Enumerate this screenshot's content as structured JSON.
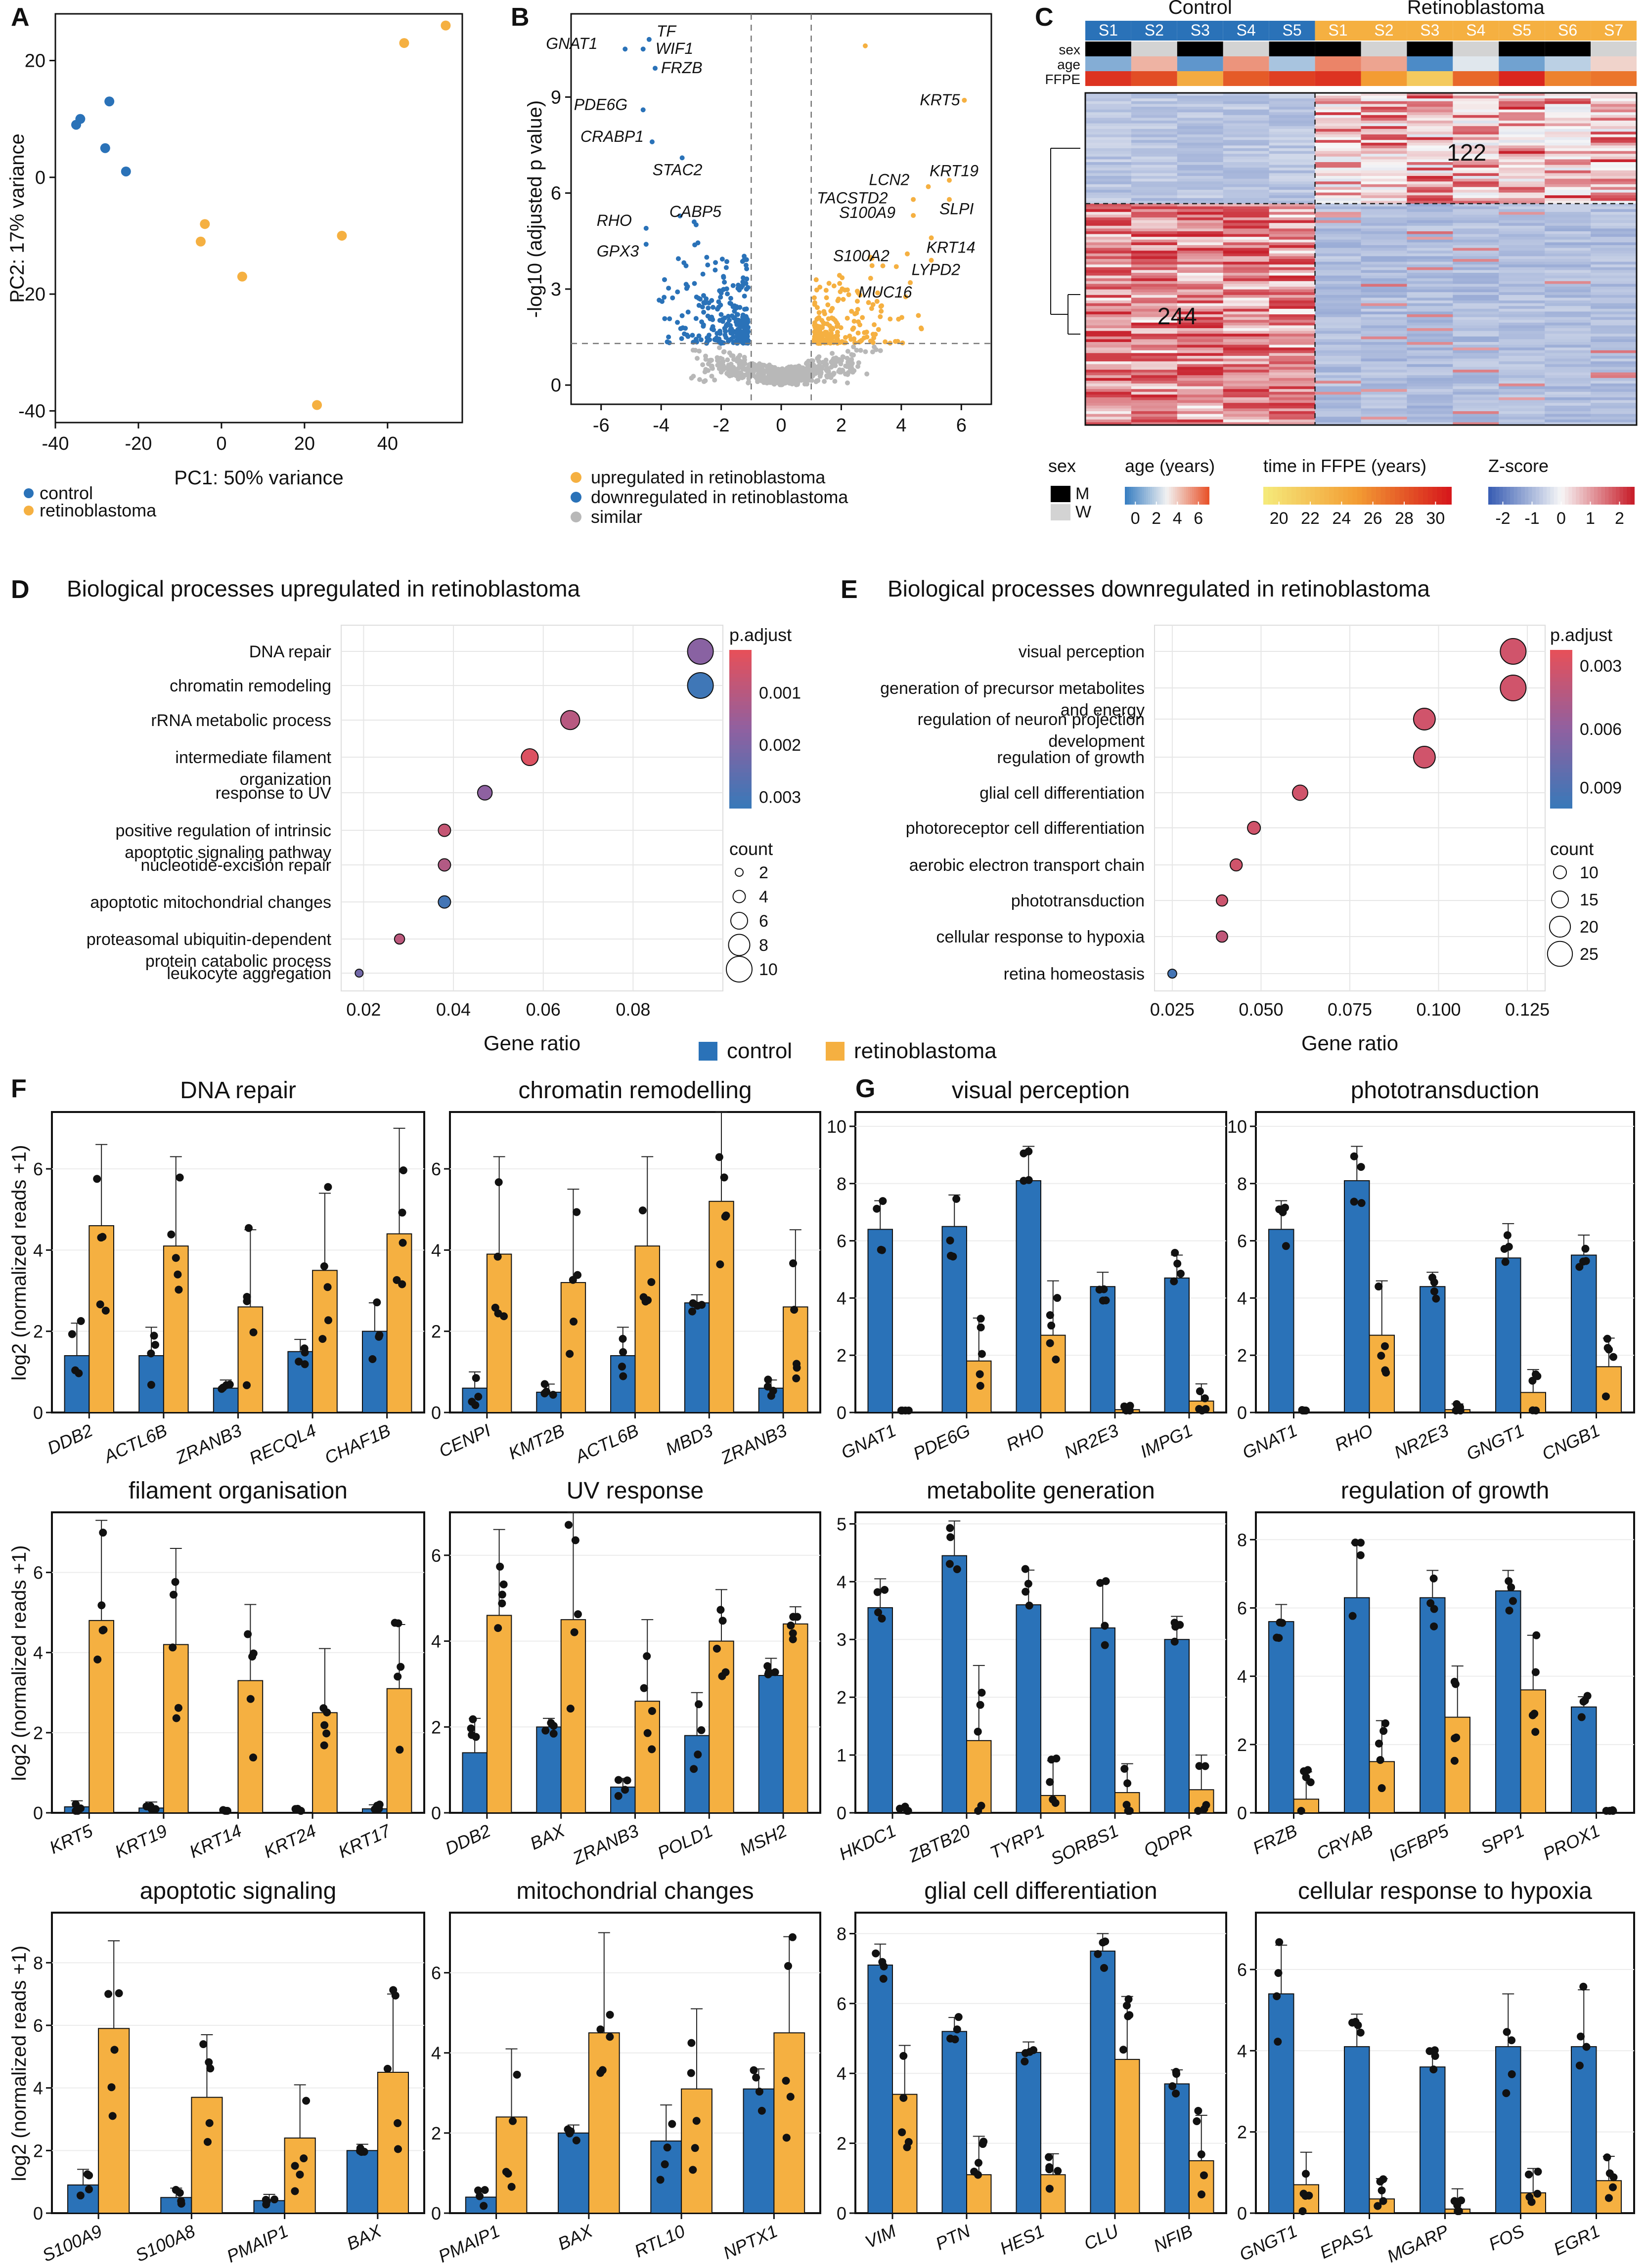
{
  "figure": {
    "panel_letters": [
      "A",
      "B",
      "C",
      "D",
      "E",
      "F",
      "G"
    ]
  },
  "colors": {
    "control": "#2a72b8",
    "retinoblastoma": "#f5b041",
    "similar": "#b8b8b8",
    "male": "#000000",
    "female": "#d3d3d3"
  },
  "chart_data": [
    {
      "id": "A",
      "type": "scatter",
      "xlabel": "PC1: 50% variance",
      "ylabel": "PC2: 17% variance",
      "xlim": [
        -40,
        58
      ],
      "ylim": [
        -42,
        28
      ],
      "xticks": [
        "-40",
        "-20",
        "0",
        "20",
        "40"
      ],
      "yticks": [
        "20",
        "0",
        "-20",
        "-40"
      ],
      "legend": [
        "control",
        "retinoblastoma"
      ],
      "series": [
        {
          "name": "control",
          "points": [
            [
              -35,
              9
            ],
            [
              -34,
              10
            ],
            [
              -27,
              13
            ],
            [
              -28,
              5
            ],
            [
              -23,
              1
            ]
          ]
        },
        {
          "name": "retinoblastoma",
          "points": [
            [
              54,
              26
            ],
            [
              44,
              23
            ],
            [
              -4,
              -8
            ],
            [
              -5,
              -11
            ],
            [
              29,
              -10
            ],
            [
              5,
              -17
            ],
            [
              23,
              -39
            ]
          ]
        }
      ]
    },
    {
      "id": "B",
      "type": "scatter",
      "subtype": "volcano",
      "xlabel": "",
      "ylabel": "-log10 (adjusted p value)",
      "xlim": [
        -7,
        7
      ],
      "ylim": [
        -0.6,
        11.6
      ],
      "xticks": [
        "-6",
        "-4",
        "-2",
        "0",
        "2",
        "4",
        "6"
      ],
      "yticks": [
        "0",
        "3",
        "6",
        "9"
      ],
      "legend": [
        "upregulated in retinoblastoma",
        "downregulated in retinoblastoma",
        "similar"
      ],
      "down_genes": [
        {
          "label": "TF",
          "x": -4.4,
          "y": 10.8
        },
        {
          "label": "GNAT1",
          "x": -5.2,
          "y": 10.5
        },
        {
          "label": "WIF1",
          "x": -4.6,
          "y": 10.5
        },
        {
          "label": "FRZB",
          "x": -4.2,
          "y": 9.9
        },
        {
          "label": "PDE6G",
          "x": -4.6,
          "y": 8.6
        },
        {
          "label": "CRABP1",
          "x": -4.3,
          "y": 7.6
        },
        {
          "label": "STAC2",
          "x": -3.3,
          "y": 7.1
        },
        {
          "label": "RHO",
          "x": -4.5,
          "y": 4.9
        },
        {
          "label": "CABP5",
          "x": -2.9,
          "y": 5.1
        },
        {
          "label": "GPX3",
          "x": -4.5,
          "y": 4.4
        }
      ],
      "up_genes": [
        {
          "label": "KRT5",
          "x": 6.1,
          "y": 8.9
        },
        {
          "label": "KRT19",
          "x": 5.6,
          "y": 6.4
        },
        {
          "label": "LCN2",
          "x": 4.9,
          "y": 6.2
        },
        {
          "label": "TACSTD2",
          "x": 4.4,
          "y": 5.8
        },
        {
          "label": "SLPI",
          "x": 5.6,
          "y": 5.8
        },
        {
          "label": "S100A9",
          "x": 4.4,
          "y": 5.3
        },
        {
          "label": "KRT14",
          "x": 5.0,
          "y": 4.6
        },
        {
          "label": "S100A2",
          "x": 4.2,
          "y": 4.1
        },
        {
          "label": "LYPD2",
          "x": 5.0,
          "y": 3.9
        },
        {
          "label": "MUC16",
          "x": 4.3,
          "y": 3.2
        }
      ],
      "thresholds": {
        "x": [
          -1,
          1
        ],
        "y": 1.3
      }
    },
    {
      "id": "C",
      "type": "heatmap",
      "groups": [
        "Control",
        "Retinoblastoma"
      ],
      "control_samples": [
        "S1",
        "S2",
        "S3",
        "S4",
        "S5"
      ],
      "rb_samples": [
        "S1",
        "S2",
        "S3",
        "S4",
        "S5",
        "S6",
        "S7"
      ],
      "row_labels": [
        "sex",
        "age",
        "FFPE"
      ],
      "clusters": [
        {
          "label": "122",
          "n": 122
        },
        {
          "label": "244",
          "n": 244
        }
      ],
      "sex_legend": {
        "title": "sex",
        "items": [
          "M",
          "W"
        ]
      },
      "age_legend": {
        "title": "age (years)",
        "ticks": [
          "0",
          "2",
          "4",
          "6"
        ]
      },
      "ffpe_legend": {
        "title": "time in FFPE (years)",
        "ticks": [
          "20",
          "22",
          "24",
          "26",
          "28",
          "30"
        ]
      },
      "z_legend": {
        "title": "Z-score",
        "ticks": [
          "-2",
          "-1",
          "0",
          "1",
          "2"
        ]
      }
    },
    {
      "id": "D",
      "type": "scatter",
      "subtype": "dotplot",
      "title": "Biological processes upregulated in retinoblastoma",
      "xlabel": "Gene ratio",
      "xlim": [
        0.015,
        0.1
      ],
      "xticks": [
        0.02,
        0.04,
        0.06,
        0.08
      ],
      "xtick_labels": [
        "0.02",
        "0.04",
        "0.06",
        "0.08"
      ],
      "terms": [
        "DNA repair",
        "chromatin remodeling",
        "rRNA metabolic process",
        "intermediate filament\norganization",
        "response to UV",
        "positive regulation of intrinsic\napoptotic signaling pathway",
        "nucleotide-excision repair",
        "apoptotic mitochondrial changes",
        "proteasomal ubiquitin-dependent\nprotein catabolic process",
        "leukocyte aggregation"
      ],
      "gene_ratio": [
        0.095,
        0.095,
        0.066,
        0.057,
        0.047,
        0.038,
        0.038,
        0.038,
        0.028,
        0.019
      ],
      "count": [
        10,
        10,
        7,
        6,
        5,
        4,
        4,
        4,
        3,
        2
      ],
      "p_adjust": [
        0.002,
        0.0036,
        0.001,
        0.0002,
        0.0019,
        0.0007,
        0.0011,
        0.0035,
        0.0009,
        0.0025
      ],
      "p_range": [
        0,
        0.0037
      ],
      "color_legend": {
        "title": "p.adjust",
        "ticks": [
          "0.001",
          "0.002",
          "0.003"
        ]
      },
      "size_legend": {
        "title": "count",
        "items": [
          "2",
          "4",
          "6",
          "8",
          "10"
        ]
      }
    },
    {
      "id": "E",
      "type": "scatter",
      "subtype": "dotplot",
      "title": "Biological processes downregulated in retinoblastoma",
      "xlabel": "Gene ratio",
      "xlim": [
        0.02,
        0.13
      ],
      "xticks": [
        0.025,
        0.05,
        0.075,
        0.1,
        0.125
      ],
      "xtick_labels": [
        "0.025",
        "0.050",
        "0.075",
        "0.100",
        "0.125"
      ],
      "terms": [
        "visual perception",
        "generation of precursor metabolites\nand energy",
        "regulation of neuron projection\ndevelopment",
        "regulation of growth",
        "glial cell differentiation",
        "photoreceptor cell differentiation",
        "aerobic electron transport chain",
        "phototransduction",
        "cellular response to hypoxia",
        "retina homeostasis"
      ],
      "gene_ratio": [
        0.121,
        0.121,
        0.096,
        0.096,
        0.061,
        0.048,
        0.043,
        0.039,
        0.039,
        0.025
      ],
      "count": [
        26,
        26,
        21,
        21,
        13,
        10,
        9,
        8,
        8,
        5
      ],
      "p_adjust": [
        0.0028,
        0.0028,
        0.0028,
        0.0028,
        0.0028,
        0.0028,
        0.0028,
        0.003,
        0.0036,
        0.0095
      ],
      "p_range": [
        0.0018,
        0.01
      ],
      "color_legend": {
        "title": "p.adjust",
        "ticks": [
          "0.003",
          "0.006",
          "0.009"
        ]
      },
      "size_legend": {
        "title": "count",
        "items": [
          "10",
          "15",
          "20",
          "25"
        ]
      }
    },
    {
      "id": "F-G",
      "type": "bar",
      "ylabel": "log2 (normalized reads +1)",
      "legend": [
        "control",
        "retinoblastoma"
      ],
      "panels": [
        {
          "title": "DNA repair",
          "genes": [
            "DDB2",
            "ACTL6B",
            "ZRANB3",
            "RECQL4",
            "CHAF1B"
          ],
          "control": [
            1.4,
            1.4,
            0.6,
            1.5,
            2.0
          ],
          "retino": [
            4.6,
            4.1,
            2.6,
            3.5,
            4.4
          ],
          "ctrl_err": [
            0.8,
            0.7,
            0.2,
            0.3,
            0.7
          ],
          "rb_err": [
            2.0,
            2.2,
            1.9,
            1.9,
            2.6
          ],
          "ylim": [
            0,
            7.4
          ],
          "yticks": [
            0,
            2,
            4,
            6
          ]
        },
        {
          "title": "chromatin remodelling",
          "genes": [
            "CENPI",
            "KMT2B",
            "ACTL6B",
            "MBD3",
            "ZRANB3"
          ],
          "control": [
            0.6,
            0.5,
            1.4,
            2.7,
            0.6
          ],
          "retino": [
            3.9,
            3.2,
            4.1,
            5.2,
            2.6
          ],
          "ctrl_err": [
            0.4,
            0.2,
            0.7,
            0.2,
            0.2
          ],
          "rb_err": [
            2.4,
            2.3,
            2.2,
            2.2,
            1.9
          ],
          "ylim": [
            0,
            7.4
          ],
          "yticks": [
            0,
            2,
            4,
            6
          ]
        },
        {
          "title": "visual perception",
          "genes": [
            "GNAT1",
            "PDE6G",
            "RHO",
            "NR2E3",
            "IMPG1"
          ],
          "control": [
            6.4,
            6.5,
            8.1,
            4.4,
            4.7
          ],
          "retino": [
            0,
            1.8,
            2.7,
            0.1,
            0.4
          ],
          "ctrl_err": [
            1.0,
            1.1,
            1.2,
            0.5,
            0.8
          ],
          "rb_err": [
            0,
            1.5,
            1.9,
            0.2,
            0.6
          ],
          "ylim": [
            0,
            10.5
          ],
          "yticks": [
            0,
            2,
            4,
            6,
            8,
            10
          ]
        },
        {
          "title": "phototransduction",
          "genes": [
            "GNAT1",
            "RHO",
            "NR2E3",
            "GNGT1",
            "CNGB1"
          ],
          "control": [
            6.4,
            8.1,
            4.4,
            5.4,
            5.5
          ],
          "retino": [
            0,
            2.7,
            0.1,
            0.7,
            1.6
          ],
          "ctrl_err": [
            1.0,
            1.2,
            0.5,
            1.2,
            0.7
          ],
          "rb_err": [
            0,
            1.9,
            0.2,
            0.8,
            1.0
          ],
          "ylim": [
            0,
            10.5
          ],
          "yticks": [
            0,
            2,
            4,
            6,
            8,
            10
          ]
        },
        {
          "title": "filament organisation",
          "genes": [
            "KRT5",
            "KRT19",
            "KRT14",
            "KRT24",
            "KRT17"
          ],
          "control": [
            0.15,
            0.12,
            0.0,
            0.0,
            0.1
          ],
          "retino": [
            4.8,
            4.2,
            3.3,
            2.5,
            3.1
          ],
          "ctrl_err": [
            0.15,
            0.15,
            0,
            0,
            0.1
          ],
          "rb_err": [
            2.5,
            2.4,
            1.9,
            1.6,
            1.6
          ],
          "ylim": [
            0,
            7.5
          ],
          "yticks": [
            0,
            2,
            4,
            6
          ]
        },
        {
          "title": "UV response",
          "genes": [
            "DDB2",
            "BAX",
            "ZRANB3",
            "POLD1",
            "MSH2"
          ],
          "control": [
            1.4,
            2.0,
            0.6,
            1.8,
            3.2
          ],
          "retino": [
            4.6,
            4.5,
            2.6,
            4.0,
            4.4
          ],
          "ctrl_err": [
            0.8,
            0.2,
            0.2,
            1.0,
            0.4
          ],
          "rb_err": [
            2.0,
            2.5,
            1.9,
            1.2,
            0.4
          ],
          "ylim": [
            0,
            7.0
          ],
          "yticks": [
            0,
            2,
            4,
            6
          ]
        },
        {
          "title": "metabolite generation",
          "genes": [
            "HKDC1",
            "ZBTB20",
            "TYRP1",
            "SORBS1",
            "QDPR"
          ],
          "control": [
            3.55,
            4.45,
            3.6,
            3.2,
            3.0
          ],
          "retino": [
            0,
            1.25,
            0.3,
            0.35,
            0.4
          ],
          "ctrl_err": [
            0.5,
            0.6,
            0.6,
            0.8,
            0.4
          ],
          "rb_err": [
            0,
            1.3,
            0.6,
            0.5,
            0.6
          ],
          "ylim": [
            0,
            5.2
          ],
          "yticks": [
            0,
            1,
            2,
            3,
            4,
            5
          ]
        },
        {
          "title": "regulation of growth",
          "genes": [
            "FRZB",
            "CRYAB",
            "IGFBP5",
            "SPP1",
            "PROX1"
          ],
          "control": [
            5.6,
            6.3,
            6.3,
            6.5,
            3.1
          ],
          "retino": [
            0.4,
            1.5,
            2.8,
            3.6,
            0
          ],
          "ctrl_err": [
            0.5,
            1.6,
            0.8,
            0.6,
            0.3
          ],
          "rb_err": [
            0.8,
            1.2,
            1.5,
            1.6,
            0
          ],
          "ylim": [
            0,
            8.8
          ],
          "yticks": [
            0,
            2,
            4,
            6,
            8
          ]
        },
        {
          "title": "apoptotic signaling",
          "genes": [
            "S100A9",
            "S100A8",
            "PMAIP1",
            "BAX"
          ],
          "control": [
            0.9,
            0.5,
            0.4,
            2.0
          ],
          "retino": [
            5.9,
            3.7,
            2.4,
            4.5
          ],
          "ctrl_err": [
            0.5,
            0.3,
            0.2,
            0.2
          ],
          "rb_err": [
            2.8,
            2.0,
            1.7,
            2.5
          ],
          "ylim": [
            0,
            9.6
          ],
          "yticks": [
            0,
            2,
            4,
            6,
            8
          ]
        },
        {
          "title": "mitochondrial changes",
          "genes": [
            "PMAIP1",
            "BAX",
            "RTL10",
            "NPTX1"
          ],
          "control": [
            0.4,
            2.0,
            1.8,
            3.1
          ],
          "retino": [
            2.4,
            4.5,
            3.1,
            4.5
          ],
          "ctrl_err": [
            0.2,
            0.2,
            0.9,
            0.5
          ],
          "rb_err": [
            1.7,
            2.5,
            2.0,
            2.4
          ],
          "ylim": [
            0,
            7.5
          ],
          "yticks": [
            0,
            2,
            4,
            6
          ]
        },
        {
          "title": "glial cell differentiation",
          "genes": [
            "VIM",
            "PTN",
            "HES1",
            "CLU",
            "NFIB"
          ],
          "control": [
            7.1,
            5.2,
            4.6,
            7.5,
            3.7
          ],
          "retino": [
            3.4,
            1.1,
            1.1,
            4.4,
            1.5
          ],
          "ctrl_err": [
            0.6,
            0.4,
            0.3,
            0.5,
            0.4
          ],
          "rb_err": [
            1.4,
            1.1,
            0.6,
            1.8,
            1.3
          ],
          "ylim": [
            0,
            8.6
          ],
          "yticks": [
            0,
            2,
            4,
            6,
            8
          ]
        },
        {
          "title": "cellular response to hypoxia",
          "genes": [
            "GNGT1",
            "EPAS1",
            "MGARP",
            "FOS",
            "EGR1"
          ],
          "control": [
            5.4,
            4.1,
            3.6,
            4.1,
            4.1
          ],
          "retino": [
            0.7,
            0.35,
            0.1,
            0.5,
            0.8
          ],
          "ctrl_err": [
            1.2,
            0.8,
            0.4,
            1.3,
            1.4
          ],
          "rb_err": [
            0.8,
            0.5,
            0.5,
            0.6,
            0.6
          ],
          "ylim": [
            0,
            7.4
          ],
          "yticks": [
            0,
            2,
            4,
            6
          ]
        }
      ]
    }
  ]
}
